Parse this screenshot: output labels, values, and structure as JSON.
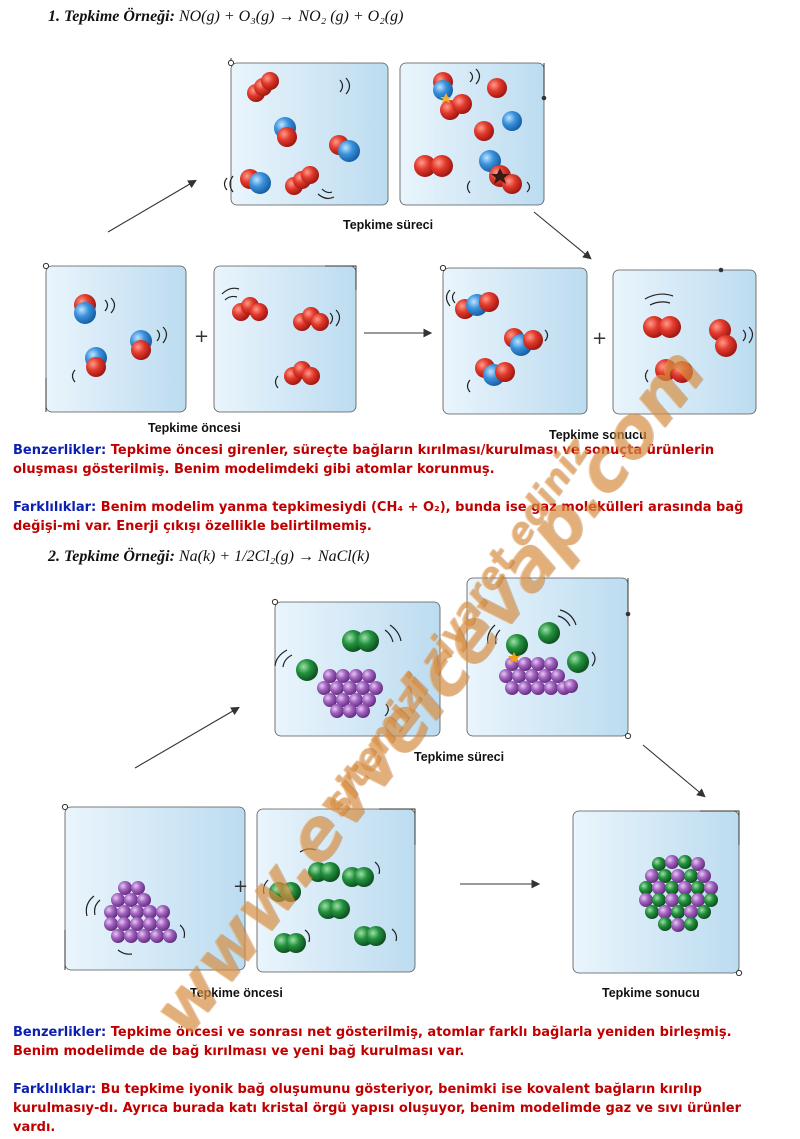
{
  "example1": {
    "title_prefix": "1. Tepkime Örneği:",
    "equation": "NO(g) + O₃(g) → NO₂ (g) + O₂(g)",
    "caption_process": "Tepkime süreci",
    "caption_before": "Tepkime öncesi",
    "caption_after": "Tepkime sonucu",
    "similarities_label": "Benzerlikler:",
    "similarities_text": "Tepkime öncesi girenler, süreçte bağların kırılması/kurulması ve sonuçta ürünlerin oluşması gösterilmiş. Benim modelimdeki gibi atomlar korunmuş.",
    "differences_label": "Farklılıklar:",
    "differences_text": "Benim modelim yanma tepkimesiydi (CH₄ + O₂), bunda ise gaz molekülleri arasında bağ değişi-mi var. Enerji çıkışı özellikle belirtilmemiş."
  },
  "example2": {
    "title_prefix": "2. Tepkime Örneği:",
    "equation": "Na(k) + 1/2Cl₂(g) → NaCl(k)",
    "caption_process": "Tepkime süreci",
    "caption_before": "Tepkime öncesi",
    "caption_after": "Tepkime sonucu",
    "similarities_label": "Benzerlikler:",
    "similarities_text": "Tepkime öncesi ve sonrası net gösterilmiş, atomlar farklı bağlarla yeniden birleşmiş. Benim modelimde de bağ kırılması ve yeni bağ kurulması var.",
    "differences_label": "Farklılıklar:",
    "differences_text": "Bu tepkime iyonik bağ oluşumunu gösteriyor, benimki ise kovalent bağların kırılıp kurulmasıy-dı. Ayrıca burada katı kristal örgü yapısı oluşuyor, benim modelimde gaz ve sıvı ürünler vardı."
  },
  "plus_sign": "+",
  "watermark": {
    "line1": "www.evvelcevap.com",
    "line2": "sitemizi ziyaret ediniz"
  },
  "colors": {
    "label_blue": "#0b1fb0",
    "text_red": "#c00000",
    "oxygen_red": "#d9302a",
    "nitrogen_blue": "#2f86d6",
    "chlorine_green": "#1e8a3c",
    "sodium_purple": "#9c5ab8",
    "box_blue": "#cfe6f5",
    "watermark_orange": "#e9a050"
  }
}
